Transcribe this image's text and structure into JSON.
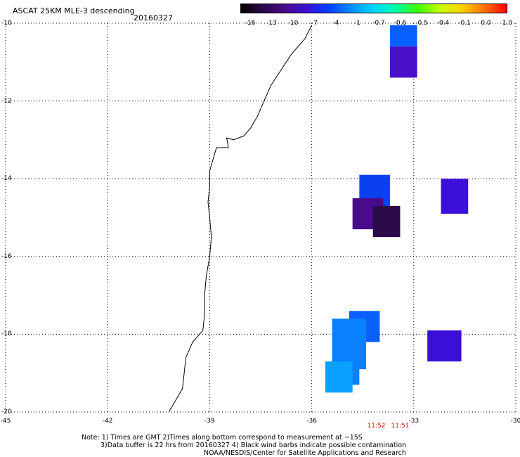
{
  "header": {
    "title": "ASCAT 25KM MLE-3 descending",
    "date": "20160327"
  },
  "colorbar": {
    "labels": [
      "-16",
      "-13",
      "-10",
      "-7",
      "-4",
      "-1",
      "-0.7",
      "-0.6",
      "-0.5",
      "-0.4",
      "-0.1",
      "0.0",
      "1.0"
    ],
    "colors": [
      "#000000",
      "#2a0a48",
      "#4a0a8c",
      "#3a10d8",
      "#0040ff",
      "#0090ff",
      "#00d8ff",
      "#00ffa8",
      "#40ff00",
      "#c8ff00",
      "#ffd000",
      "#ff7000",
      "#ff0000"
    ]
  },
  "map": {
    "lon_range": [
      -45,
      -30
    ],
    "lat_range": [
      -20,
      -10
    ],
    "x_ticks": [
      "-45",
      "-42",
      "-39",
      "-36",
      "-33",
      "-30"
    ],
    "y_ticks": [
      "-10",
      "-12",
      "-14",
      "-16",
      "-18",
      "-20"
    ],
    "coast_color": "#000000",
    "cells": [
      {
        "lon0": -33.7,
        "lon1": -32.9,
        "lat0": -10.6,
        "lat1": -10.05,
        "color": "#0a60ff"
      },
      {
        "lon0": -33.7,
        "lon1": -32.9,
        "lat0": -11.4,
        "lat1": -10.6,
        "color": "#4a10c8"
      },
      {
        "lon0": -34.6,
        "lon1": -33.7,
        "lat0": -14.9,
        "lat1": -13.9,
        "color": "#0a40f0"
      },
      {
        "lon0": -32.2,
        "lon1": -31.4,
        "lat0": -14.9,
        "lat1": -14.0,
        "color": "#3a10d8"
      },
      {
        "lon0": -34.8,
        "lon1": -33.9,
        "lat0": -15.3,
        "lat1": -14.5,
        "color": "#4a0a8c"
      },
      {
        "lon0": -34.2,
        "lon1": -33.4,
        "lat0": -15.5,
        "lat1": -14.7,
        "color": "#2a0a48"
      },
      {
        "lon0": -34.9,
        "lon1": -34.0,
        "lat0": -18.2,
        "lat1": -17.4,
        "color": "#0a60ff"
      },
      {
        "lon0": -32.6,
        "lon1": -31.6,
        "lat0": -18.7,
        "lat1": -17.9,
        "color": "#3a10d8"
      },
      {
        "lon0": -35.4,
        "lon1": -34.4,
        "lat0": -18.9,
        "lat1": -17.6,
        "color": "#0a80ff"
      },
      {
        "lon0": -35.4,
        "lon1": -34.6,
        "lat0": -19.3,
        "lat1": -18.6,
        "color": "#0a80ff"
      },
      {
        "lon0": -35.6,
        "lon1": -34.8,
        "lat0": -19.5,
        "lat1": -18.7,
        "color": "#0aa0ff"
      }
    ],
    "coast": [
      [
        -36.0,
        -10.05
      ],
      [
        -36.2,
        -10.4
      ],
      [
        -36.6,
        -10.8
      ],
      [
        -36.9,
        -11.2
      ],
      [
        -37.2,
        -11.6
      ],
      [
        -37.4,
        -12.0
      ],
      [
        -37.6,
        -12.4
      ],
      [
        -37.8,
        -12.7
      ],
      [
        -38.0,
        -12.9
      ],
      [
        -38.3,
        -13.0
      ],
      [
        -38.5,
        -12.95
      ],
      [
        -38.45,
        -13.2
      ],
      [
        -38.8,
        -13.2
      ],
      [
        -38.9,
        -13.5
      ],
      [
        -39.0,
        -13.8
      ],
      [
        -39.0,
        -14.2
      ],
      [
        -39.05,
        -14.6
      ],
      [
        -39.0,
        -15.0
      ],
      [
        -38.95,
        -15.5
      ],
      [
        -39.0,
        -16.0
      ],
      [
        -39.1,
        -16.5
      ],
      [
        -39.15,
        -17.0
      ],
      [
        -39.15,
        -17.5
      ],
      [
        -39.2,
        -17.9
      ],
      [
        -39.5,
        -18.2
      ],
      [
        -39.7,
        -18.6
      ],
      [
        -39.75,
        -19.0
      ],
      [
        -39.8,
        -19.4
      ],
      [
        -40.0,
        -19.7
      ],
      [
        -40.2,
        -20.0
      ]
    ]
  },
  "times": [
    {
      "lon": -34.1,
      "label": "11:52"
    },
    {
      "lon": -33.4,
      "label": "11:51"
    }
  ],
  "notes": {
    "line1": "Note: 1) Times are GMT 2)Times along bottom correspond to measurement at ~15S",
    "line2": "3)Data buffer is 22 hrs from 20160327 4) Black wind barbs indicate possible contamination",
    "line3": "NOAA/NESDIS/Center for Satellite Applications and Research"
  }
}
